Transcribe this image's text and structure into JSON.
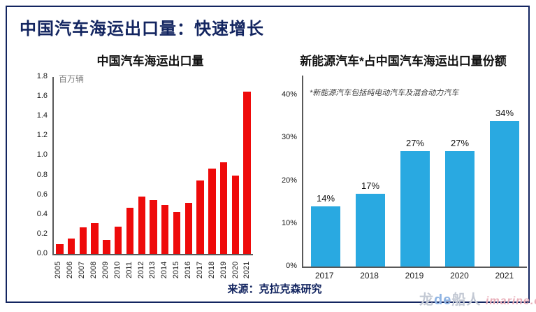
{
  "slide": {
    "main_title": "中国汽车海运出口量：快速增长",
    "source": "来源：克拉克森研究",
    "watermark": {
      "dragon": "龙",
      "de": "de",
      "boat_people": "船人",
      "site": "imarine.cn"
    }
  },
  "chart_data": [
    {
      "type": "bar",
      "title": "中国汽车海运出口量",
      "ylabel": "百万辆",
      "categories": [
        "2005",
        "2006",
        "2007",
        "2008",
        "2009",
        "2010",
        "2011",
        "2012",
        "2013",
        "2014",
        "2015",
        "2016",
        "2017",
        "2018",
        "2019",
        "2020",
        "2021"
      ],
      "values": [
        0.1,
        0.16,
        0.27,
        0.31,
        0.14,
        0.28,
        0.47,
        0.58,
        0.55,
        0.5,
        0.43,
        0.52,
        0.75,
        0.87,
        0.93,
        0.8,
        1.65
      ],
      "ylim": [
        0,
        1.8
      ],
      "yticks": [
        "1.8",
        "1.6",
        "1.4",
        "1.2",
        "1.0",
        "0.8",
        "0.6",
        "0.4",
        "0.2",
        "0.0"
      ],
      "grid": false,
      "legend_position": "none",
      "bar_color": "#ee0a0a"
    },
    {
      "type": "bar",
      "title": "新能源汽车*占中国汽车海运出口量份额",
      "footnote": "*新能源汽车包括纯电动汽车及混合动力汽车",
      "categories": [
        "2017",
        "2018",
        "2019",
        "2020",
        "2021"
      ],
      "values": [
        14,
        17,
        27,
        27,
        34
      ],
      "data_labels": [
        "14%",
        "17%",
        "27%",
        "27%",
        "34%"
      ],
      "ylim": [
        0,
        40
      ],
      "yticks": [
        "40%",
        "30%",
        "20%",
        "10%",
        "0%"
      ],
      "grid": false,
      "legend_position": "none",
      "bar_color": "#29a9e1"
    }
  ],
  "colors": {
    "accent_navy": "#132560",
    "bar_red": "#ee0a0a",
    "bar_blue": "#29a9e1",
    "axis_gray": "#595959",
    "unit_gray": "#7f7f7f"
  }
}
